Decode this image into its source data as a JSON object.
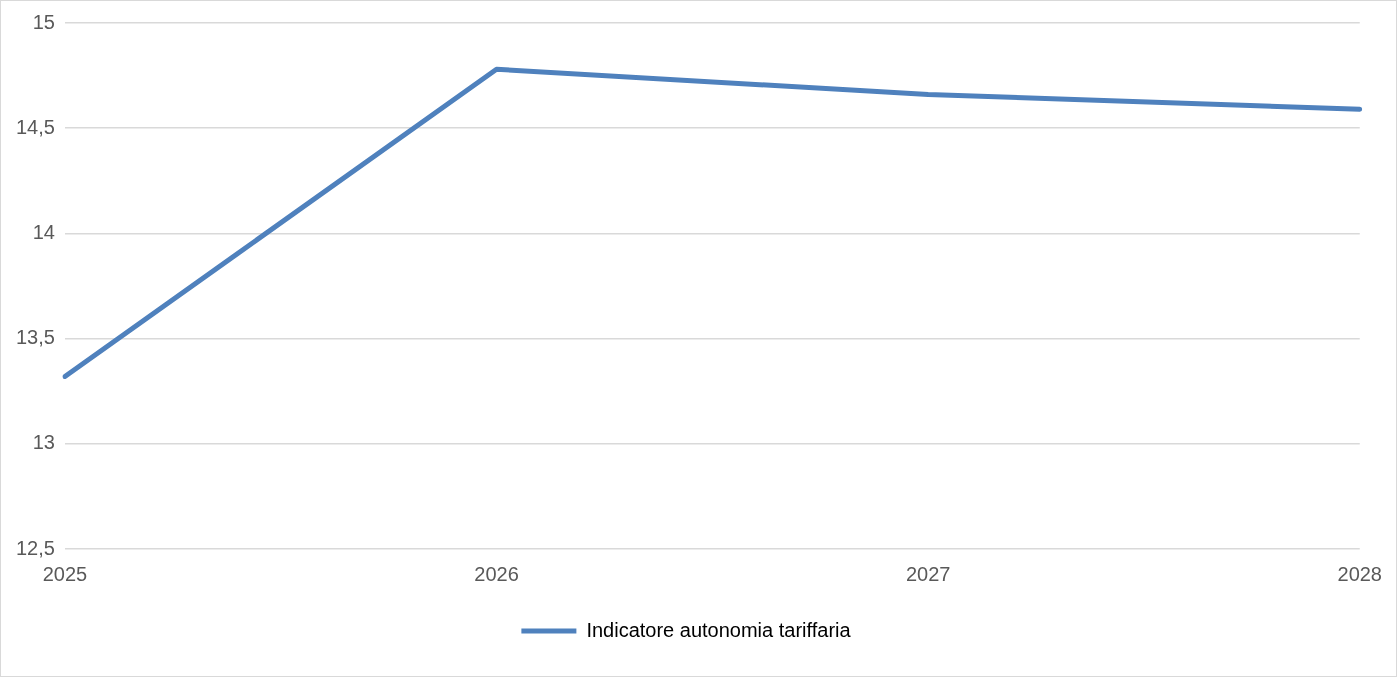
{
  "chart_data": {
    "type": "line",
    "categories": [
      "2025",
      "2026",
      "2027",
      "2028"
    ],
    "series": [
      {
        "name": "Indicatore autonomia tariffaria",
        "color": "#4f81bd",
        "values": [
          13.32,
          14.78,
          14.66,
          14.59
        ]
      }
    ],
    "ylim": [
      12.5,
      15
    ],
    "yticks": [
      {
        "value": 12.5,
        "label": "12,5"
      },
      13,
      {
        "value": 13.5,
        "label": "13,5"
      },
      14,
      {
        "value": 14.5,
        "label": "14,5"
      },
      15
    ],
    "grid": "y",
    "legend": "bottom",
    "marker": "none",
    "line_style": "solid"
  }
}
